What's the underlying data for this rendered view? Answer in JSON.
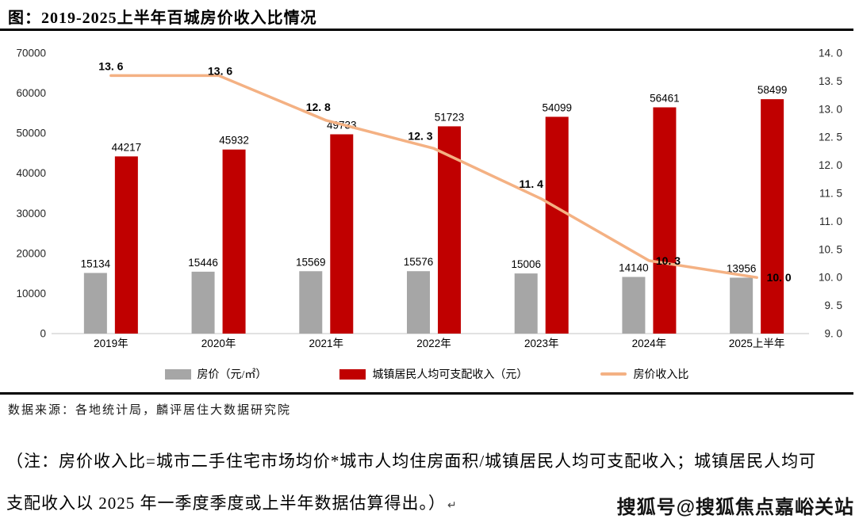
{
  "page": {
    "title": "图：2019-2025上半年百城房价收入比情况",
    "source": "数据来源：各地统计局，麟评居住大数据研究院",
    "note_lines": [
      "（注：房价收入比=城市二手住宅市场均价*城市人均住房面积/城镇居民人均可支配收入；城镇居民人均可",
      "支配收入以 2025 年一季度季度或上半年数据估算得出。）"
    ],
    "note_end_mark": "↵",
    "watermark": "搜狐号@搜狐焦点嘉峪关站"
  },
  "chart_data": {
    "type": "combo",
    "title": "2019-2025上半年百城房价收入比情况",
    "categories": [
      "2019年",
      "2020年",
      "2021年",
      "2022年",
      "2023年",
      "2024年",
      "2025上半年"
    ],
    "series": [
      {
        "type": "bar",
        "name": "房价（元/㎡）",
        "color": "#A6A6A6",
        "values": [
          15134,
          15446,
          15569,
          15576,
          15006,
          14140,
          13956
        ]
      },
      {
        "type": "bar",
        "name": "城镇居民人均可支配收入（元）",
        "color": "#C00000",
        "values": [
          44217,
          45932,
          49733,
          51723,
          54099,
          56461,
          58499
        ]
      },
      {
        "type": "line",
        "name": "房价收入比",
        "color": "#F4B183",
        "values": [
          13.6,
          13.6,
          12.8,
          12.3,
          11.4,
          10.3,
          10.0
        ],
        "point_labels": [
          "13. 6",
          "13. 6",
          "12. 8",
          "12. 3",
          "11. 4",
          "10. 3",
          "10. 0"
        ],
        "label_offsets": [
          [
            0,
            -11
          ],
          [
            2,
            -5
          ],
          [
            -10,
            -16
          ],
          [
            -17,
            -15
          ],
          [
            -13,
            -18
          ],
          [
            24,
            1
          ],
          [
            28,
            1
          ]
        ]
      }
    ],
    "left_axis": {
      "min": 0,
      "max": 70000,
      "tick_labels": [
        "0",
        "10000",
        "20000",
        "30000",
        "40000",
        "50000",
        "60000",
        "70000"
      ]
    },
    "right_axis": {
      "min": 9.0,
      "max": 14.0,
      "tick_labels": [
        "9. 0",
        "9. 5",
        "10. 0",
        "10. 5",
        "11. 0",
        "11. 5",
        "12. 0",
        "12. 5",
        "13. 0",
        "13. 5",
        "14. 0"
      ]
    },
    "legend": [
      {
        "swatch": "bar",
        "color": "#A6A6A6",
        "label": "房价（元/㎡）"
      },
      {
        "swatch": "bar",
        "color": "#C00000",
        "label": "城镇居民人均可支配收入（元）"
      },
      {
        "swatch": "line",
        "color": "#F4B183",
        "label": "房价收入比"
      }
    ],
    "grid": false,
    "legend_position": "bottom",
    "colors": {
      "baseline": "#D9D9D9",
      "tick_text": "#262626",
      "label_text": "#000000"
    }
  }
}
